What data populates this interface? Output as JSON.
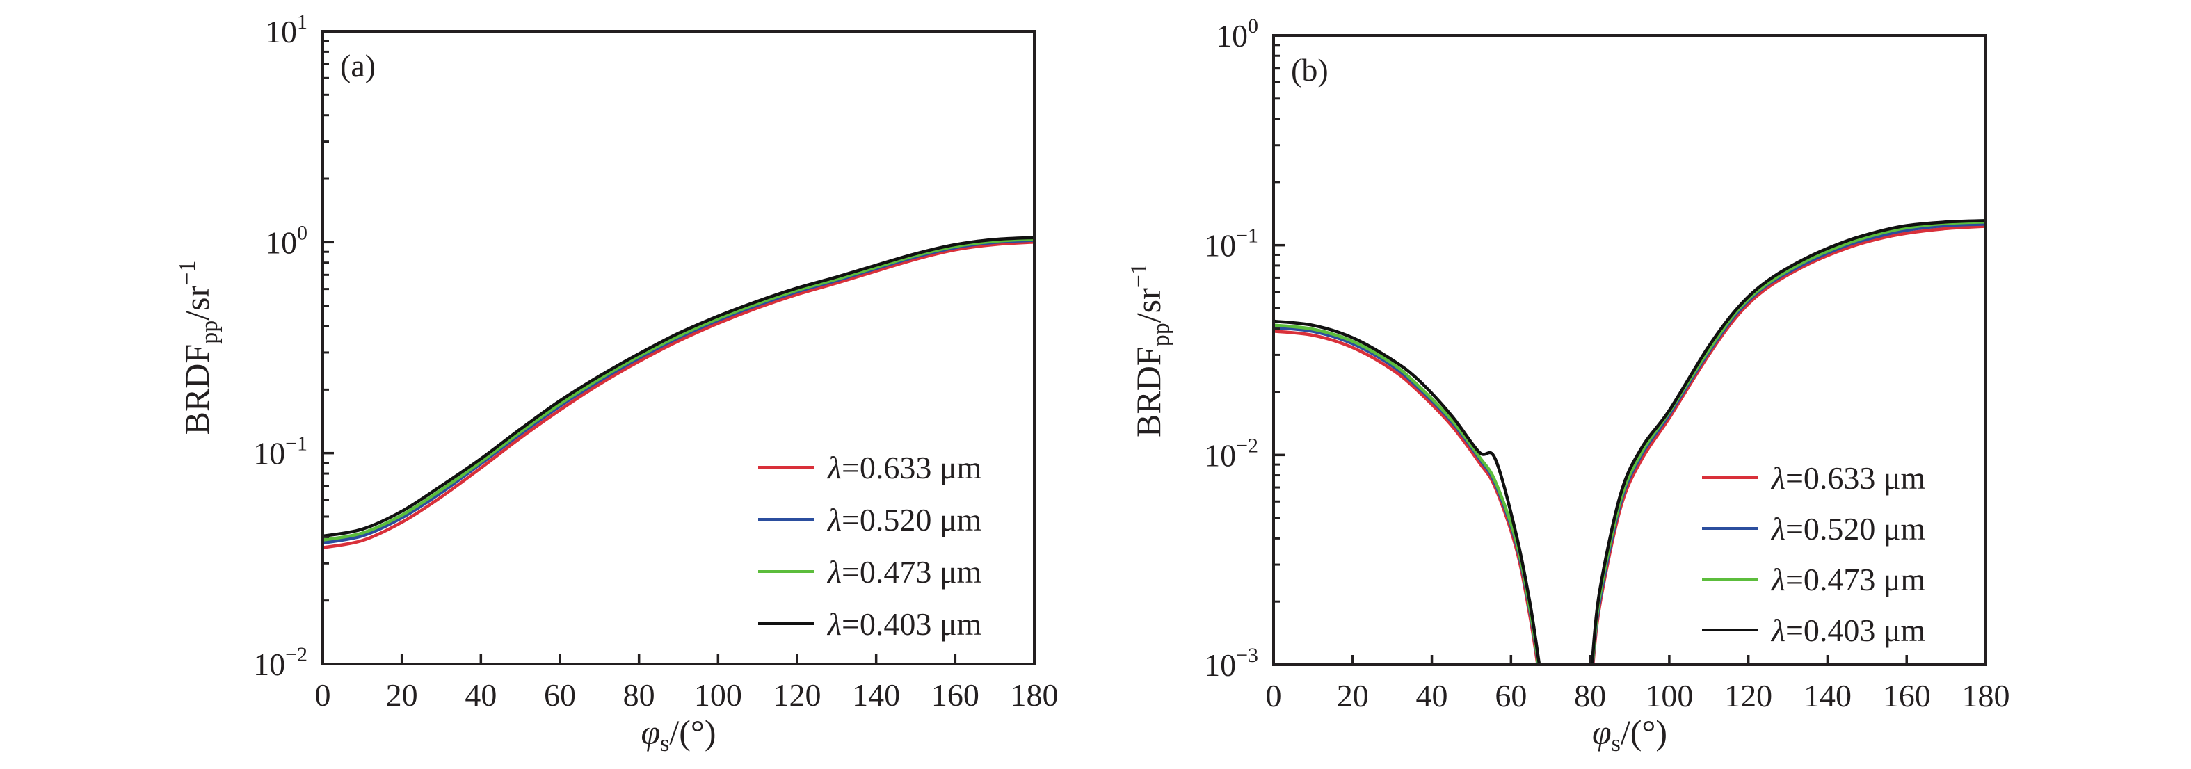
{
  "chart_data": [
    {
      "type": "line",
      "panel_label": "(a)",
      "xlabel": {
        "symbol": "φ",
        "sub": "s",
        "suffix": "/(°)"
      },
      "ylabel": {
        "main": "BRDF",
        "sub": "pp",
        "unit": "/sr",
        "sup": "−1"
      },
      "xlim": [
        0,
        180
      ],
      "xticks": [
        0,
        20,
        40,
        60,
        80,
        100,
        120,
        140,
        160,
        180
      ],
      "yscale": "log",
      "ylim_exp": [
        -2,
        1
      ],
      "yticks": [
        {
          "base": "10",
          "exp": "1"
        },
        {
          "base": "10",
          "exp": "0"
        },
        {
          "base": "10",
          "exp": "−1"
        },
        {
          "base": "10",
          "exp": "−2"
        }
      ],
      "legend_position": "lower-right",
      "grid": false,
      "x": [
        0,
        10,
        20,
        30,
        40,
        50,
        60,
        70,
        80,
        90,
        100,
        110,
        120,
        130,
        140,
        150,
        160,
        170,
        180
      ],
      "series": [
        {
          "name": "λ=0.633 μm",
          "color": "#d9303a",
          "values": [
            0.0356,
            0.0385,
            0.047,
            0.062,
            0.085,
            0.118,
            0.16,
            0.212,
            0.272,
            0.34,
            0.412,
            0.488,
            0.565,
            0.64,
            0.73,
            0.83,
            0.92,
            0.975,
            1.0
          ]
        },
        {
          "name": "λ=0.520 μm",
          "color": "#2b4e9e",
          "values": [
            0.0375,
            0.0405,
            0.0493,
            0.065,
            0.089,
            0.123,
            0.167,
            0.22,
            0.282,
            0.352,
            0.426,
            0.503,
            0.582,
            0.658,
            0.75,
            0.852,
            0.943,
            0.998,
            1.022
          ]
        },
        {
          "name": "λ=0.473 μm",
          "color": "#5cbd3c",
          "values": [
            0.0387,
            0.0418,
            0.0508,
            0.067,
            0.091,
            0.126,
            0.171,
            0.225,
            0.288,
            0.359,
            0.434,
            0.512,
            0.592,
            0.668,
            0.761,
            0.864,
            0.955,
            1.01,
            1.034
          ]
        },
        {
          "name": "λ=0.403 μm",
          "color": "#111111",
          "values": [
            0.0404,
            0.0436,
            0.053,
            0.07,
            0.094,
            0.13,
            0.177,
            0.232,
            0.296,
            0.37,
            0.446,
            0.525,
            0.606,
            0.684,
            0.778,
            0.882,
            0.974,
            1.03,
            1.052
          ]
        }
      ]
    },
    {
      "type": "line",
      "panel_label": "(b)",
      "xlabel": {
        "symbol": "φ",
        "sub": "s",
        "suffix": "/(°)"
      },
      "ylabel": {
        "main": "BRDF",
        "sub": "pp",
        "unit": "/sr",
        "sup": "−1"
      },
      "xlim": [
        0,
        180
      ],
      "xticks": [
        0,
        20,
        40,
        60,
        80,
        100,
        120,
        140,
        160,
        180
      ],
      "yscale": "log",
      "ylim_exp": [
        -3,
        0
      ],
      "yticks": [
        {
          "base": "10",
          "exp": "0"
        },
        {
          "base": "10",
          "exp": "−1"
        },
        {
          "base": "10",
          "exp": "−2"
        },
        {
          "base": "10",
          "exp": "−3"
        }
      ],
      "legend_position": "lower-right",
      "grid": false,
      "x": [
        0,
        10,
        20,
        30,
        36.7,
        45,
        52,
        56,
        61.3,
        64.8,
        67.1,
        80.5,
        82.4,
        87.7,
        93,
        100,
        110,
        117.6,
        125,
        135,
        145,
        152.7,
        160,
        170,
        180
      ],
      "series": [
        {
          "name": "λ=0.633 μm",
          "color": "#d9303a",
          "values": [
            0.0389,
            0.0372,
            0.0325,
            0.0255,
            0.02,
            0.0138,
            0.0092,
            0.007,
            0.0036,
            0.0017,
            0.0009,
            0.0009,
            0.0019,
            0.0056,
            0.0095,
            0.015,
            0.03,
            0.047,
            0.063,
            0.081,
            0.097,
            0.107,
            0.114,
            0.12,
            0.123
          ]
        },
        {
          "name": "λ=0.520 μm",
          "color": "#2b4e9e",
          "values": [
            0.0405,
            0.0388,
            0.0339,
            0.0266,
            0.0208,
            0.0144,
            0.0096,
            0.0073,
            0.0038,
            0.0018,
            0.00095,
            0.00095,
            0.002,
            0.0059,
            0.01,
            0.0156,
            0.031,
            0.0486,
            0.065,
            0.083,
            0.1,
            0.11,
            0.118,
            0.124,
            0.126
          ]
        },
        {
          "name": "λ=0.473 μm",
          "color": "#5cbd3c",
          "values": [
            0.0416,
            0.0398,
            0.0348,
            0.0273,
            0.0213,
            0.0147,
            0.0098,
            0.0075,
            0.0039,
            0.00185,
            0.00097,
            0.00097,
            0.0021,
            0.0061,
            0.0103,
            0.016,
            0.0317,
            0.0497,
            0.066,
            0.085,
            0.102,
            0.113,
            0.121,
            0.127,
            0.129
          ]
        },
        {
          "name": "λ=0.403 μm",
          "color": "#111111",
          "values": [
            0.0434,
            0.0415,
            0.0362,
            0.0284,
            0.0227,
            0.0154,
            0.0103,
            0.0096,
            0.0042,
            0.00197,
            0.00102,
            0.00102,
            0.00224,
            0.0065,
            0.0108,
            0.0163,
            0.033,
            0.051,
            0.068,
            0.0875,
            0.105,
            0.116,
            0.124,
            0.129,
            0.131
          ]
        }
      ]
    }
  ]
}
